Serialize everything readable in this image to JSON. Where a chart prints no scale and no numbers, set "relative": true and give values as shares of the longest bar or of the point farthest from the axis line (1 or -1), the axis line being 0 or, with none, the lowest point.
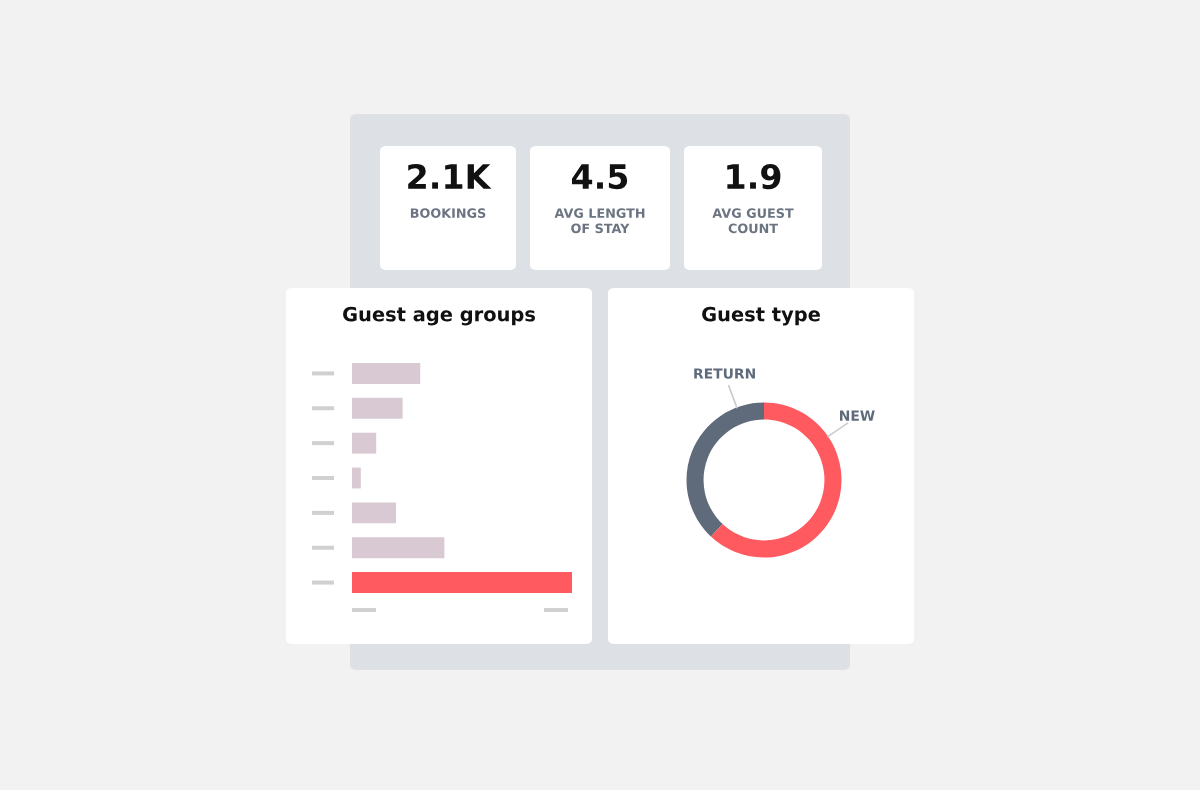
{
  "chart_data": [
    {
      "type": "other",
      "annotations": [
        "2.1K",
        "BOOKINGS"
      ]
    },
    {
      "type": "other",
      "annotations": [
        "4.5",
        "AVG LENGTH\nOF STAY"
      ]
    },
    {
      "type": "other",
      "annotations": [
        "1.9",
        "AVG GUEST\nCOUNT"
      ]
    },
    {
      "type": "bar",
      "title": "Guest age groups",
      "orientation": "horizontal",
      "relative": true,
      "categories": [
        null,
        null,
        null,
        null,
        null,
        null,
        null
      ],
      "values": [
        0.31,
        0.23,
        0.11,
        0.04,
        0.2,
        0.42,
        1
      ],
      "colors": [
        "#d9c9d3",
        "#d9c9d3",
        "#d9c9d3",
        "#d9c9d3",
        "#d9c9d3",
        "#d9c9d3",
        "#ff5a5f"
      ]
    },
    {
      "type": "donut",
      "title": "Guest type",
      "categories": [
        "RETURN",
        "NEW"
      ],
      "values": [
        38,
        62
      ],
      "colors": [
        "#5f6b7a",
        "#ff5a5f"
      ]
    }
  ]
}
